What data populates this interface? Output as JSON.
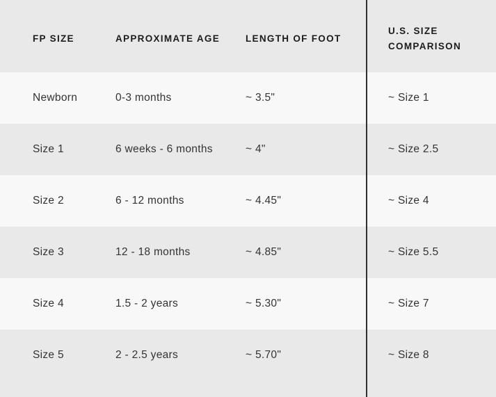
{
  "colors": {
    "background_gray": "#e9e9e9",
    "row_light": "#f8f8f8",
    "divider": "#2f2f2f",
    "header_text": "#1c1c1c",
    "body_text": "#333333"
  },
  "table": {
    "columns": [
      {
        "label": "FP SIZE"
      },
      {
        "label": "APPROXIMATE AGE"
      },
      {
        "label": "LENGTH OF FOOT"
      },
      {
        "label": "U.S. SIZE COMPARISON"
      }
    ],
    "rows": [
      {
        "fp_size": "Newborn",
        "approximate_age": "0-3 months",
        "length_of_foot": "~ 3.5\"",
        "us_size_comparison": "~ Size 1"
      },
      {
        "fp_size": "Size 1",
        "approximate_age": "6 weeks - 6 months",
        "length_of_foot": "~ 4\"",
        "us_size_comparison": "~ Size 2.5"
      },
      {
        "fp_size": "Size 2",
        "approximate_age": "6 - 12 months",
        "length_of_foot": "~ 4.45\"",
        "us_size_comparison": "~ Size 4"
      },
      {
        "fp_size": "Size 3",
        "approximate_age": "12 - 18 months",
        "length_of_foot": "~ 4.85\"",
        "us_size_comparison": "~ Size 5.5"
      },
      {
        "fp_size": "Size 4",
        "approximate_age": "1.5 - 2 years",
        "length_of_foot": "~ 5.30\"",
        "us_size_comparison": "~ Size 7"
      },
      {
        "fp_size": "Size 5",
        "approximate_age": "2 - 2.5 years",
        "length_of_foot": "~ 5.70\"",
        "us_size_comparison": "~ Size 8"
      }
    ]
  }
}
